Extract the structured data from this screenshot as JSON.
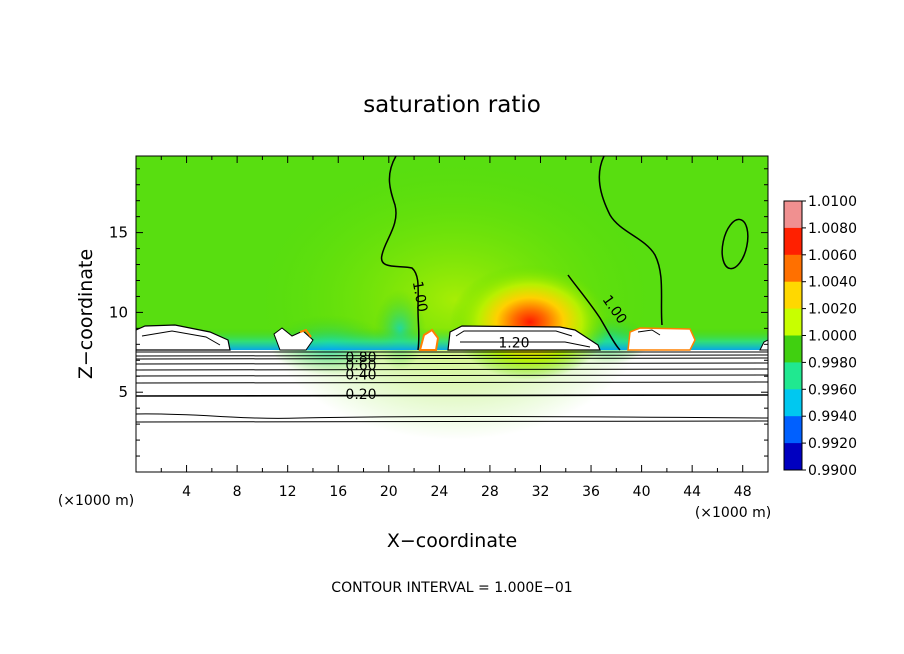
{
  "chart_data": {
    "type": "heatmap",
    "title": "saturation ratio",
    "xlabel": "X−coordinate",
    "ylabel": "Z−coordinate",
    "x_unit_left": "(×1000 m)",
    "x_unit_right": "(×1000 m)",
    "xlim": [
      0,
      50
    ],
    "ylim": [
      0,
      19.8
    ],
    "xticks": [
      4,
      8,
      12,
      16,
      20,
      24,
      28,
      32,
      36,
      40,
      44,
      48
    ],
    "yticks": [
      5,
      10,
      15
    ],
    "colorbar": {
      "levels": [
        1.01,
        1.008,
        1.006,
        1.004,
        1.002,
        1.0,
        0.998,
        0.996,
        0.994,
        0.992,
        0.99
      ],
      "labels": [
        "1.0100",
        "1.0080",
        "1.0060",
        "1.0040",
        "1.0020",
        "1.0000",
        "0.9980",
        "0.9960",
        "0.9940",
        "0.9920",
        "0.9900"
      ],
      "colors": [
        "#f09090",
        "#ff2000",
        "#ff7000",
        "#ffd800",
        "#c8ff00",
        "#40d010",
        "#20e890",
        "#00c8f0",
        "#0060ff",
        "#0000c0",
        "#400090"
      ]
    },
    "contour_labels": [
      {
        "text": "1.00",
        "x": 22.5,
        "z": 11.0,
        "angle": 80
      },
      {
        "text": "1.00",
        "x": 37.9,
        "z": 10.2,
        "angle": 55
      },
      {
        "text": "1.20",
        "x": 29.9,
        "z": 8.1,
        "angle": 0
      },
      {
        "text": "0.80",
        "x": 17.8,
        "z": 7.2,
        "angle": 0
      },
      {
        "text": "0.60",
        "x": 17.8,
        "z": 6.7,
        "angle": 0
      },
      {
        "text": "0.40",
        "x": 17.8,
        "z": 6.1,
        "angle": 0
      },
      {
        "text": "0.20",
        "x": 17.8,
        "z": 4.9,
        "angle": 0
      }
    ],
    "contour_interval_note": "CONTOUR INTERVAL = 1.000E−01"
  }
}
